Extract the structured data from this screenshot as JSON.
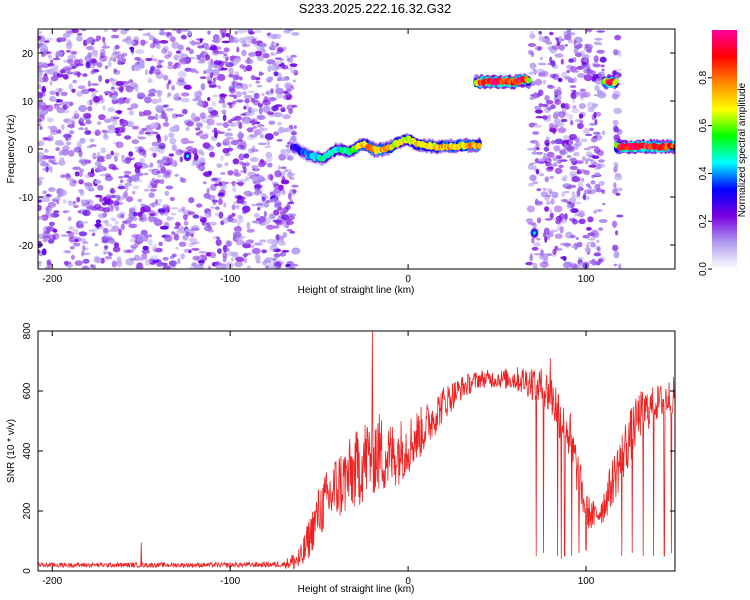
{
  "figure": {
    "title": "S233.2025.222.16.32.G32"
  },
  "chart_data": [
    {
      "type": "heatmap",
      "title": "S233.2025.222.16.32.G32",
      "xlabel": "Height of straight line (km)",
      "ylabel": "Frequency (Hz)",
      "xlim": [
        -208,
        150
      ],
      "ylim": [
        -25,
        25
      ],
      "xticks": [
        -200,
        -100,
        0,
        100
      ],
      "xtick_labels": [
        "-200",
        "-100",
        "0",
        "100"
      ],
      "yticks": [
        -20,
        -10,
        0,
        10,
        20
      ],
      "ytick_labels": [
        "-20",
        "-10",
        "0",
        "10",
        "20"
      ],
      "colorbar": {
        "label": "Normalized spectral amplitude",
        "range": [
          0,
          1
        ],
        "ticks": [
          0.0,
          0.2,
          0.4,
          0.6,
          0.8
        ],
        "tick_labels": [
          "0.0",
          "0.2",
          "0.4",
          "0.6",
          "0.8"
        ],
        "colors": [
          "#ffffff",
          "#b09cf0",
          "#7a00e0",
          "#0000ff",
          "#00ffff",
          "#00ff00",
          "#ffff00",
          "#ff8800",
          "#ff0000",
          "#ff00a0"
        ]
      },
      "regions": [
        {
          "name": "noise",
          "x": [
            -208,
            -63
          ],
          "y": [
            -25,
            25
          ],
          "amplitude": 0.15
        },
        {
          "name": "noise",
          "x": [
            68,
            110
          ],
          "y": [
            -25,
            25
          ],
          "amplitude": 0.15
        },
        {
          "name": "noise",
          "x": [
            116,
            119
          ],
          "y": [
            -25,
            25
          ],
          "amplitude": 0.1
        }
      ],
      "ridges": [
        {
          "name": "main tone",
          "x": [
            -65,
            -55,
            -48,
            -40,
            -33,
            -25,
            -18,
            -10,
            -5,
            0,
            5,
            15,
            25,
            40
          ],
          "y": [
            0.5,
            -1.5,
            -2.0,
            0.0,
            -0.5,
            1.0,
            -0.3,
            0.3,
            1.5,
            2.0,
            1.0,
            0.5,
            0.6,
            0.8
          ],
          "amplitude": [
            0.3,
            0.4,
            0.5,
            0.45,
            0.55,
            0.75,
            0.8,
            0.7,
            0.65,
            0.6,
            0.7,
            0.72,
            0.75,
            0.75
          ]
        },
        {
          "name": "upper tone",
          "x": [
            38,
            40,
            50,
            60,
            66,
            68
          ],
          "y": [
            14,
            14,
            14,
            14,
            14.5,
            14
          ],
          "amplitude": [
            0.6,
            0.9,
            0.95,
            0.9,
            0.95,
            0.6
          ]
        },
        {
          "name": "upper tone",
          "x": [
            110,
            112,
            115,
            117
          ],
          "y": [
            14,
            14,
            14,
            14
          ],
          "amplitude": [
            0.6,
            0.95,
            0.95,
            0.6
          ]
        },
        {
          "name": "lower-right tone",
          "x": [
            117,
            120,
            130,
            140,
            150
          ],
          "y": [
            0.5,
            0.5,
            0.5,
            0.5,
            0.5
          ],
          "amplitude": [
            0.6,
            0.95,
            0.95,
            0.9,
            0.85
          ]
        }
      ],
      "spots": [
        {
          "x": -124,
          "y": -1.5,
          "amplitude": 0.3
        },
        {
          "x": 71,
          "y": -17.5,
          "amplitude": 0.35
        }
      ]
    },
    {
      "type": "line",
      "xlabel": "Height of straight line (km)",
      "ylabel": "SNR (10 * v/v)",
      "xlim": [
        -208,
        150
      ],
      "ylim": [
        0,
        800
      ],
      "xticks": [
        -200,
        -100,
        0,
        100
      ],
      "xtick_labels": [
        "-200",
        "-100",
        "0",
        "100"
      ],
      "yticks": [
        0,
        200,
        400,
        600,
        800
      ],
      "ytick_labels": [
        "0",
        "200",
        "400",
        "600",
        "800"
      ],
      "series": [
        {
          "name": "SNR",
          "color": "#ee2222",
          "envelope_x": [
            -208,
            -150,
            -100,
            -70,
            -60,
            -50,
            -40,
            -30,
            -20,
            -10,
            0,
            10,
            20,
            30,
            40,
            50,
            60,
            70,
            80,
            90,
            100,
            105,
            110,
            120,
            130,
            140,
            150
          ],
          "envelope_mean": [
            20,
            20,
            20,
            22,
            40,
            200,
            280,
            330,
            400,
            380,
            420,
            480,
            560,
            610,
            640,
            640,
            640,
            630,
            590,
            470,
            200,
            180,
            220,
            380,
            520,
            560,
            590
          ],
          "envelope_spread": [
            8,
            8,
            8,
            10,
            50,
            90,
            120,
            130,
            150,
            120,
            100,
            80,
            60,
            40,
            30,
            30,
            40,
            60,
            80,
            100,
            60,
            50,
            60,
            100,
            80,
            60,
            60
          ],
          "dropouts_x": [
            72,
            76,
            80,
            84,
            86,
            88,
            92,
            96,
            100,
            120,
            126,
            132,
            138,
            144,
            148
          ],
          "dropouts_y": [
            50,
            60,
            50,
            50,
            40,
            50,
            50,
            60,
            70,
            50,
            60,
            50,
            50,
            50,
            60
          ],
          "peaks_x": [
            -150,
            -20,
            80
          ],
          "peaks_y": [
            95,
            800,
            710
          ]
        }
      ]
    }
  ]
}
